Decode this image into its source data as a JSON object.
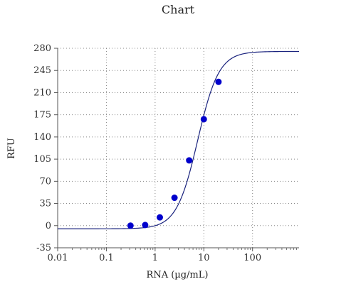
{
  "chart_data": {
    "type": "scatter",
    "title": "Chart",
    "xlabel": "RNA (µg/mL)",
    "ylabel": "RFU",
    "x_scale": "log",
    "xlim": [
      0.01,
      900
    ],
    "ylim": [
      -35,
      280
    ],
    "x_ticks": [
      {
        "value": 0.01,
        "label": "0.01"
      },
      {
        "value": 0.1,
        "label": "0.1"
      },
      {
        "value": 1,
        "label": "1"
      },
      {
        "value": 10,
        "label": "10"
      },
      {
        "value": 100,
        "label": "100"
      }
    ],
    "y_ticks": [
      {
        "value": -35,
        "label": "-35"
      },
      {
        "value": 0,
        "label": "0"
      },
      {
        "value": 35,
        "label": "35"
      },
      {
        "value": 70,
        "label": "70"
      },
      {
        "value": 105,
        "label": "105"
      },
      {
        "value": 140,
        "label": "140"
      },
      {
        "value": 175,
        "label": "175"
      },
      {
        "value": 210,
        "label": "210"
      },
      {
        "value": 245,
        "label": "245"
      },
      {
        "value": 280,
        "label": "280"
      }
    ],
    "grid": true,
    "points": {
      "x": [
        0.3125,
        0.625,
        1.25,
        2.5,
        5,
        10,
        20
      ],
      "y": [
        0,
        1,
        13,
        44,
        103,
        168,
        227
      ],
      "color": "#0000cc"
    },
    "fit_curve": {
      "model": "4PL",
      "bottom": -5,
      "top": 275,
      "ec50": 7.5,
      "hill": 2.0,
      "color": "#1a237e"
    }
  }
}
